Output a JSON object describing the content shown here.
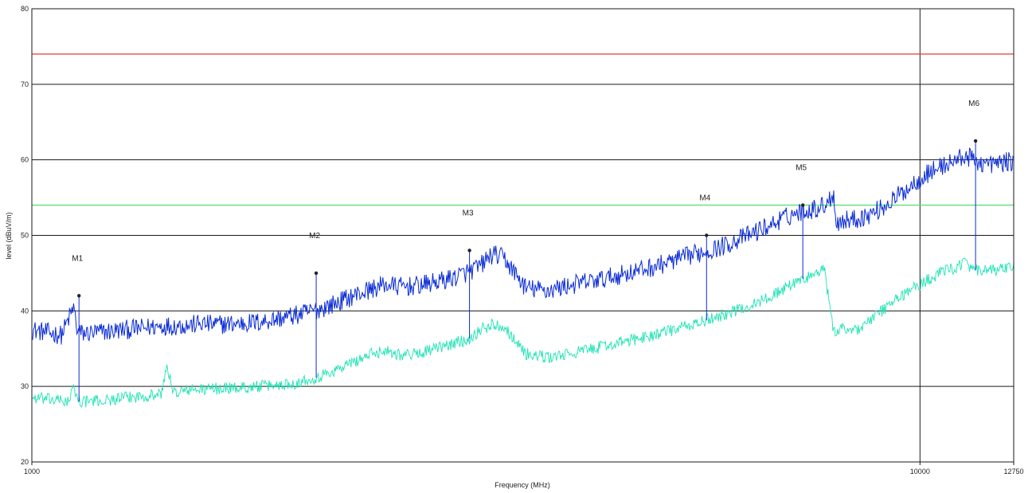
{
  "chart_data": {
    "type": "line",
    "xlabel": "Frequency (MHz)",
    "ylabel": "level (dBuV/m)",
    "xscale": "log",
    "xlim": [
      1000,
      12750
    ],
    "ylim": [
      20,
      80
    ],
    "x_ticks": [
      {
        "value": 1000,
        "label": "1000"
      },
      {
        "value": 10000,
        "label": "10000"
      },
      {
        "value": 12750,
        "label": "12750"
      }
    ],
    "y_ticks": [
      20,
      30,
      40,
      50,
      60,
      70,
      80
    ],
    "grid": true,
    "limit_lines": [
      {
        "value": 74,
        "color": "#e8382b"
      },
      {
        "value": 54,
        "color": "#5ee07a"
      }
    ],
    "series": [
      {
        "color": "#0a2bd6",
        "x": [
          1000,
          1080,
          1115,
          1125,
          1140,
          1200,
          1300,
          1400,
          1500,
          1550,
          1600,
          1700,
          1800,
          1900,
          2000,
          2100,
          2200,
          2300,
          2400,
          2500,
          2600,
          2700,
          2800,
          2900,
          3000,
          3150,
          3200,
          3300,
          3400,
          3600,
          3800,
          4000,
          4200,
          4400,
          4600,
          4800,
          5000,
          5200,
          5400,
          5600,
          5800,
          6000,
          6200,
          6400,
          6600,
          6800,
          7000,
          7200,
          7400,
          7600,
          7800,
          8000,
          8050,
          8200,
          8500,
          8800,
          9100,
          9400,
          9700,
          10000,
          10300,
          10600,
          11000,
          11200,
          11400,
          11700,
          12000,
          12300,
          12750
        ],
        "values": [
          37.5,
          36.8,
          40.5,
          37.3,
          37,
          37.2,
          37.6,
          38,
          38.1,
          38.3,
          38.2,
          38.3,
          38.5,
          39,
          39.5,
          40.2,
          41,
          42,
          42.8,
          43.5,
          43.2,
          43.3,
          43.6,
          44,
          44.5,
          45.5,
          46,
          47.5,
          47,
          43,
          42.7,
          43.3,
          43.8,
          44.2,
          44.8,
          45.3,
          45.8,
          46.4,
          47,
          47.6,
          48,
          48.6,
          49.3,
          50,
          50.7,
          51.4,
          52.2,
          52.8,
          53.3,
          53.5,
          54,
          55.5,
          51.5,
          52,
          52.2,
          52.8,
          53.8,
          55,
          56.3,
          57.5,
          58.5,
          59.2,
          60,
          60.5,
          60.2,
          59.6,
          59.4,
          59.6,
          59.8
        ]
      },
      {
        "color": "#1ee3b4",
        "x": [
          1000,
          1100,
          1115,
          1130,
          1200,
          1300,
          1400,
          1420,
          1440,
          1500,
          1600,
          1700,
          1800,
          1900,
          2000,
          2050,
          2100,
          2200,
          2300,
          2400,
          2500,
          2600,
          2700,
          2800,
          2900,
          3000,
          3100,
          3200,
          3300,
          3400,
          3600,
          3800,
          4000,
          4200,
          4400,
          4600,
          4800,
          5000,
          5200,
          5400,
          5600,
          5800,
          6000,
          6200,
          6400,
          6600,
          6800,
          7000,
          7200,
          7400,
          7600,
          7800,
          8000,
          8050,
          8200,
          8500,
          8800,
          9100,
          9400,
          9700,
          10000,
          10300,
          10600,
          11000,
          11200,
          11400,
          11700,
          12000,
          12300,
          12750
        ],
        "values": [
          28.5,
          28,
          29.8,
          28,
          28.1,
          28.6,
          29,
          33,
          29.2,
          29.5,
          29.7,
          29.8,
          30,
          30.2,
          30.5,
          31,
          31.2,
          32.2,
          33.2,
          34.2,
          34.8,
          34.2,
          34.3,
          34.8,
          35.2,
          35.8,
          36.2,
          37.5,
          38.2,
          38,
          34.3,
          33.8,
          34.2,
          34.8,
          35.3,
          35.8,
          36.3,
          36.8,
          37.3,
          37.8,
          38.3,
          38.9,
          39.5,
          40,
          40.6,
          41.2,
          42,
          42.8,
          43.6,
          44.3,
          44.8,
          45.5,
          37,
          37.2,
          37.8,
          37.5,
          38.8,
          40.2,
          41.5,
          42.6,
          43.5,
          44.4,
          45.2,
          45.8,
          46.6,
          45.5,
          45.2,
          45.3,
          45.5,
          45.7
        ]
      }
    ],
    "markers": [
      {
        "label": "M1",
        "x": 1130,
        "y": 42
      },
      {
        "label": "M2",
        "x": 2090,
        "y": 45
      },
      {
        "label": "M3",
        "x": 3110,
        "y": 48
      },
      {
        "label": "M4",
        "x": 5750,
        "y": 50
      },
      {
        "label": "M5",
        "x": 7380,
        "y": 54
      },
      {
        "label": "M6",
        "x": 11550,
        "y": 62.5
      }
    ]
  }
}
